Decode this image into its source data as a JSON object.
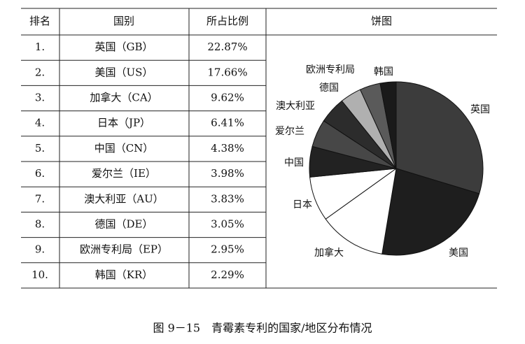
{
  "table": {
    "headers": [
      "排名",
      "国别",
      "所占比例",
      "饼图"
    ],
    "rows": [
      {
        "rank": "1.",
        "country": "英国（GB）"
      },
      {
        "rank": "2.",
        "country": "美国（US）"
      },
      {
        "rank": "3.",
        "country": "加拿大（CA）"
      },
      {
        "rank": "4.",
        "country": "日本（JP）"
      },
      {
        "rank": "5.",
        "country": "中国（CN）"
      },
      {
        "rank": "6.",
        "country": "爱尔兰（IE）"
      },
      {
        "rank": "7.",
        "country": "澳大利亚（AU）"
      },
      {
        "rank": "8.",
        "country": "德国（DE）"
      },
      {
        "rank": "9.",
        "country": "欧洲专利局（EP）"
      },
      {
        "rank": "10.",
        "country": "韩国（KR）"
      }
    ]
  },
  "chart_data": {
    "type": "pie",
    "categories": [
      "英国",
      "美国",
      "加拿大",
      "日本",
      "中国",
      "爱尔兰",
      "澳大利亚",
      "德国",
      "欧洲专利局",
      "韩国"
    ],
    "values": [
      22.87,
      17.66,
      9.62,
      6.41,
      4.38,
      3.98,
      3.83,
      3.05,
      2.95,
      2.29
    ],
    "value_labels": [
      "22.87%",
      "17.66%",
      "9.62%",
      "6.41%",
      "4.38%",
      "3.98%",
      "3.83%",
      "3.05%",
      "2.95%",
      "2.29%"
    ],
    "colors": [
      "#3c3c3c",
      "#1e1e1e",
      "#ffffff",
      "#ffffff",
      "#222222",
      "#474747",
      "#2c2c2c",
      "#b0b0b0",
      "#5a5a5a",
      "#1a1a1a"
    ]
  },
  "caption": "图 9－15　青霉素专利的国家/地区分布情况"
}
